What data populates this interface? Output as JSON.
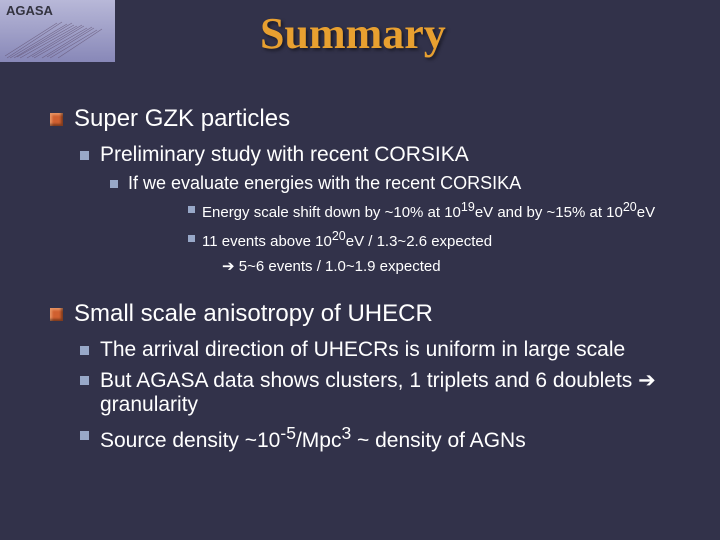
{
  "logo": {
    "text": "AGASA"
  },
  "title": "Summary",
  "colors": {
    "background": "#32324a",
    "title": "#e8a030",
    "text": "#ffffff",
    "bullet_l1": "#d06030",
    "bullet_sub": "#98a8c8",
    "logo_bg_top": "#b8b8d8",
    "logo_bg_bottom": "#8888b8"
  },
  "fonts": {
    "title_family": "Georgia",
    "title_size": 44,
    "body_family": "Arial",
    "l1_size": 24,
    "l2_size": 21,
    "l3_size": 18,
    "l4_size": 15
  },
  "sections": [
    {
      "heading": "Super GZK particles",
      "l2": [
        {
          "text": "Preliminary study with recent CORSIKA",
          "l3": [
            {
              "text": "If we evaluate energies with the recent CORSIKA",
              "l4": [
                {
                  "text_html": "Energy scale shift down by ~10% at 10<sup>19</sup>eV and by ~15% at 10<sup>20</sup>eV"
                },
                {
                  "text_html": "11 events above 10<sup>20</sup>eV / 1.3~2.6 expected",
                  "cont_html": "➔ 5~6 events / 1.0~1.9 expected"
                }
              ]
            }
          ]
        }
      ]
    },
    {
      "heading": "Small scale anisotropy of UHECR",
      "l2": [
        {
          "text": "The arrival direction of UHECRs is uniform in large scale"
        },
        {
          "text": "But AGASA data shows clusters, 1 triplets and 6 doublets ➔ granularity"
        },
        {
          "text_html": "Source density ~10<sup>-5</sup>/Mpc<sup>3</sup>  ~ density of AGNs"
        }
      ]
    }
  ]
}
